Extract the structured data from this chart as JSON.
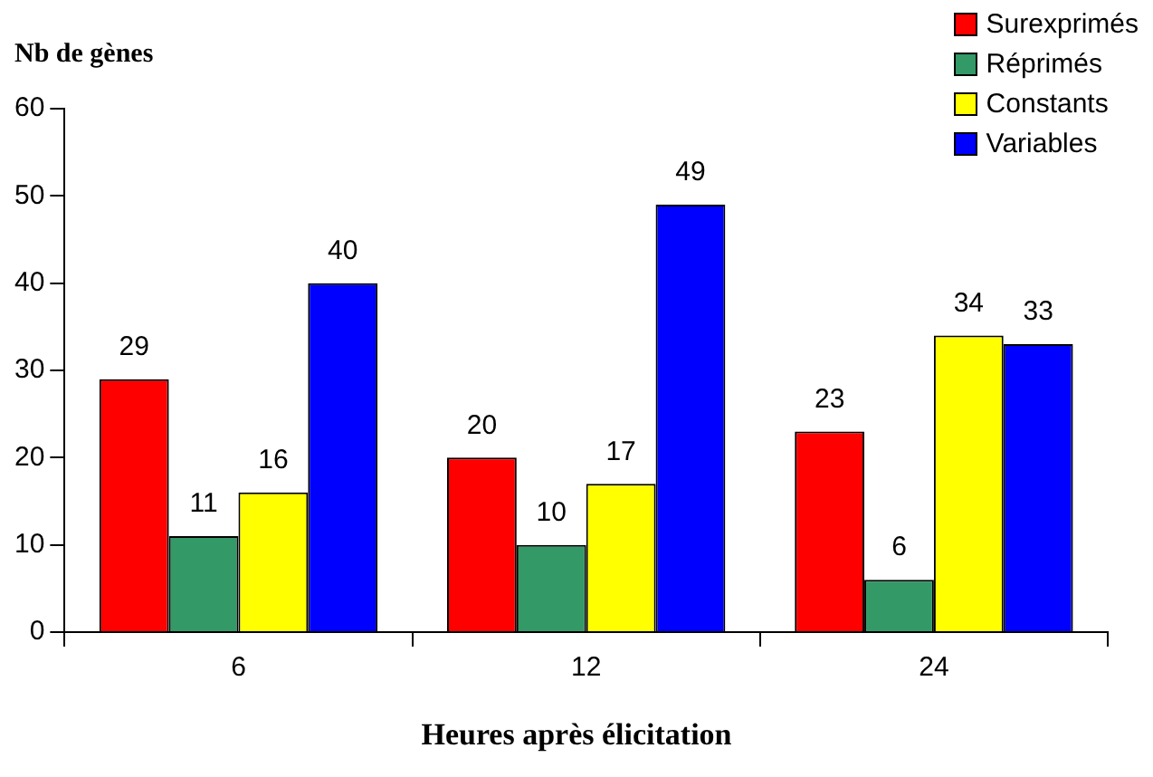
{
  "chart_data": {
    "type": "bar",
    "xlabel": "Heures après élicitation",
    "ylabel": "Nb de gènes",
    "categories": [
      "6",
      "12",
      "24"
    ],
    "series": [
      {
        "name": "Surexprimés",
        "color": "#ff0000",
        "values": [
          29,
          20,
          23
        ]
      },
      {
        "name": "Réprimés",
        "color": "#339966",
        "values": [
          11,
          10,
          6
        ]
      },
      {
        "name": "Constants",
        "color": "#ffff00",
        "values": [
          16,
          17,
          34
        ]
      },
      {
        "name": "Variables",
        "color": "#0000ff",
        "values": [
          40,
          49,
          33
        ]
      }
    ],
    "ylim": [
      0,
      60
    ],
    "yticks": [
      0,
      10,
      20,
      30,
      40,
      50,
      60
    ],
    "grid": false,
    "legend": "top right",
    "data_labels": true
  }
}
